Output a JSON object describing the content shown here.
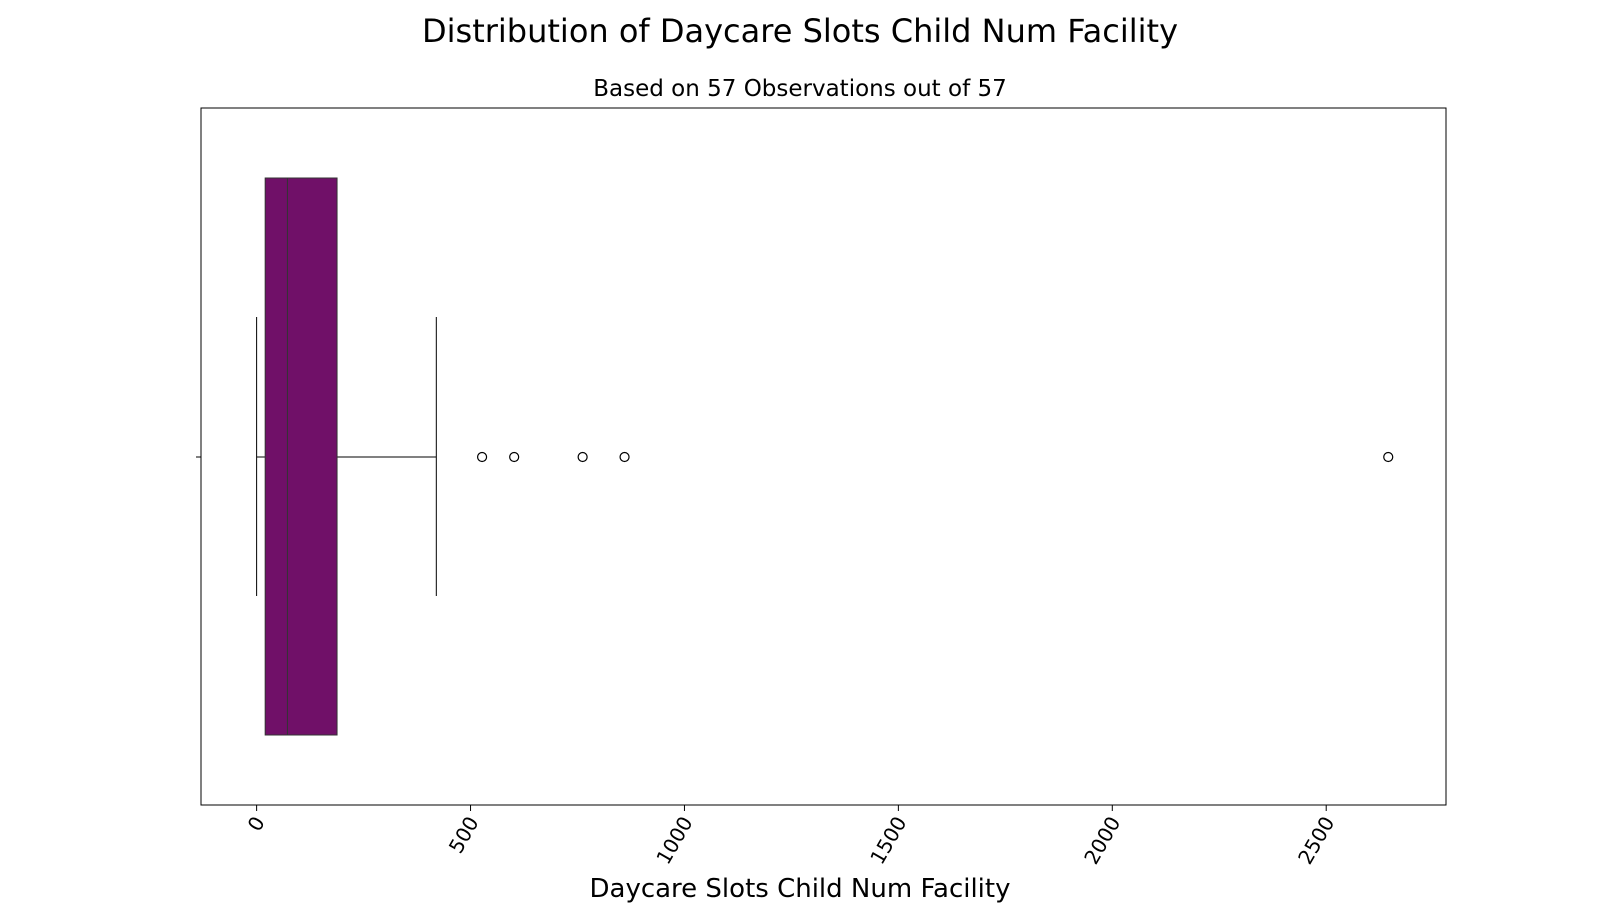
{
  "chart_data": {
    "type": "boxplot",
    "title": "Distribution of Daycare Slots Child Num Facility",
    "subtitle": "Based on 57 Observations out of 57",
    "xlabel": "Daycare Slots Child Num Facility",
    "ylabel": "",
    "orientation": "horizontal",
    "xlim": [
      -130,
      2780
    ],
    "xticks": [
      0,
      500,
      1000,
      1500,
      2000,
      2500
    ],
    "xtick_labels": [
      "0",
      "500",
      "1000",
      "1500",
      "2000",
      "2500"
    ],
    "tick_rotation_deg": 60,
    "grid": false,
    "box": {
      "whisker_low": 0,
      "q1": 20,
      "median": 72,
      "q3": 188,
      "whisker_high": 420
    },
    "outliers": [
      527,
      602,
      762,
      860,
      2645
    ],
    "colors": {
      "box_fill": "#701068",
      "line": "#000000"
    }
  }
}
